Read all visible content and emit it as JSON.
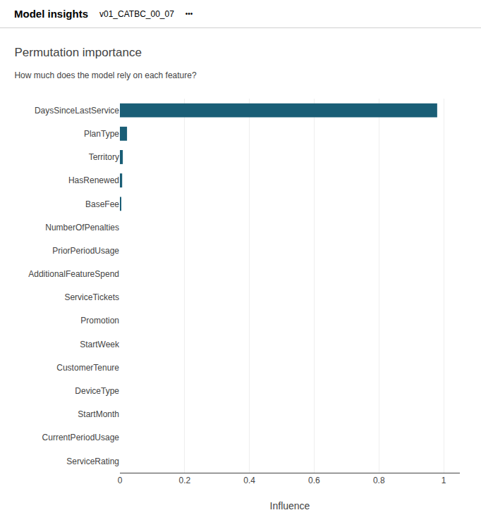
{
  "chart_data": {
    "type": "bar",
    "orientation": "horizontal",
    "annotations": [
      "Model insights",
      "v01_CATBC_00_07",
      "•••"
    ],
    "title": "Permutation importance",
    "subtitle": "How much does the model rely on each feature?",
    "xlabel": "Influence",
    "categories": [
      "DaysSinceLastService",
      "PlanType",
      "Territory",
      "HasRenewed",
      "BaseFee",
      "NumberOfPenalties",
      "PriorPeriodUsage",
      "AdditionalFeatureSpend",
      "ServiceTickets",
      "Promotion",
      "StartWeek",
      "CustomerTenure",
      "DeviceType",
      "StartMonth",
      "CurrentPeriodUsage",
      "ServiceRating"
    ],
    "values": [
      0.98,
      0.022,
      0.009,
      0.007,
      0.003,
      0.0,
      0.0,
      0.0,
      0.0,
      0.0,
      0.0,
      0.0,
      0.0,
      0.0,
      0.0,
      0.0
    ],
    "color": "#1a5e76",
    "xlim": [
      0,
      1.05
    ],
    "xticks": [
      0,
      0.2,
      0.4,
      0.6,
      0.8,
      1
    ],
    "grid": true
  }
}
